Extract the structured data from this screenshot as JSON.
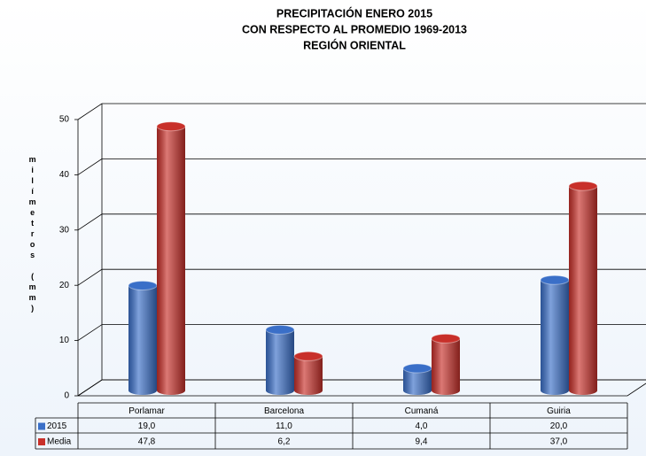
{
  "chart_data": {
    "type": "bar3d",
    "title": [
      "PRECIPITACIÓN ENERO 2015",
      "CON RESPECTO AL PROMEDIO 1969-2013",
      "REGIÓN ORIENTAL"
    ],
    "y_label": "milímetros (mm)",
    "categories": [
      "Porlamar",
      "Barcelona",
      "Cumaná",
      "Guiria"
    ],
    "series": [
      {
        "name": "2015",
        "color": "#3a6fc8",
        "values": [
          19,
          11,
          4,
          20
        ],
        "value_labels": [
          "19,0",
          "11,0",
          "4,0",
          "20,0"
        ]
      },
      {
        "name": "Media",
        "color": "#c8302a",
        "values": [
          47.8,
          6.2,
          9.4,
          37
        ],
        "value_labels": [
          "47,8",
          "6,2",
          "9,4",
          "37,0"
        ]
      }
    ],
    "ylim": [
      0,
      50
    ],
    "yticks": [
      0,
      10,
      20,
      30,
      40,
      50
    ],
    "grid": true
  }
}
